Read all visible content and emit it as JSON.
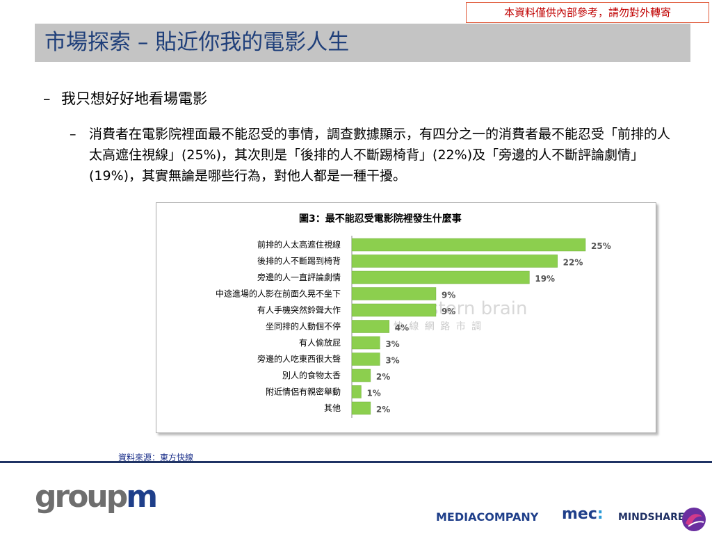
{
  "notice": "本資料僅供內部參考，請勿對外轉寄",
  "title": "市場探索 – 貼近你我的電影人生",
  "bullet1": {
    "dash": "–",
    "text": "我只想好好地看場電影"
  },
  "bullet2": {
    "dash": "–",
    "text": "消費者在電影院裡面最不能忍受的事情，調查數據顯示，有四分之一的消費者最不能忍受「前排的人太高遮住視線」(25%)，其次則是「後排的人不斷踢椅背」(22%)及「旁邊的人不斷評論劇情」(19%)，其實無論是哪些行為，對他人都是一種干擾。"
  },
  "chart_data": {
    "type": "bar",
    "orientation": "horizontal",
    "title": "圖3：最不能忍受電影院裡發生什麼事",
    "categories": [
      "前排的人太高遮住視線",
      "後排的人不斷踢到椅背",
      "旁邊的人一直評論劇情",
      "中途進場的人影在前面久晃不坐下",
      "有人手機突然鈴聲大作",
      "坐同排的人動個不停",
      "有人偷放屁",
      "旁邊的人吃東西很大聲",
      "別人的食物太香",
      "附近情侶有親密舉動",
      "其他"
    ],
    "values": [
      25,
      22,
      19,
      9,
      9,
      4,
      3,
      3,
      2,
      1,
      2
    ],
    "value_labels": [
      "25%",
      "22%",
      "19%",
      "9%",
      "9%",
      "4%",
      "3%",
      "3%",
      "2%",
      "1%",
      "2%"
    ],
    "xlim": [
      0,
      25
    ],
    "bar_color": "#8ccf4e",
    "watermark": [
      "eastern brain",
      "東 方 快 線 網 路 市 調"
    ]
  },
  "source": "資料來源：東方快線",
  "footer": {
    "groupm_a": "group",
    "groupm_b": "m",
    "mediacompany": "MEDIACOMPANY",
    "mec_a": "mec",
    "mec_b": ":",
    "mindshare": "MINDSHARE"
  },
  "colors": {
    "title_bg": "#c4c4c4",
    "title_text": "#1f3f7a",
    "notice": "#c00000",
    "rule": "#1f3364"
  }
}
